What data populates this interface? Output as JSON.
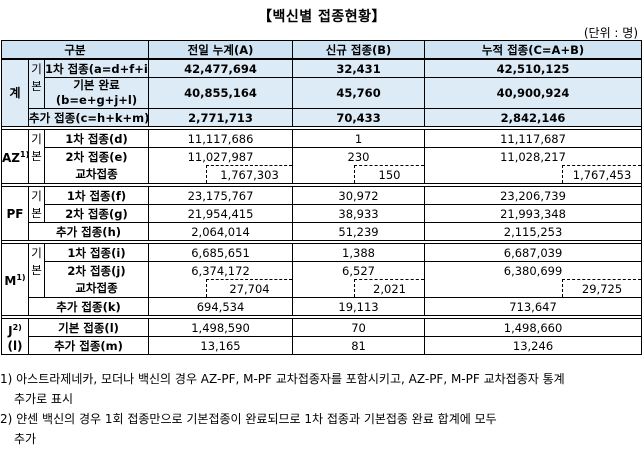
{
  "title": "【백신별 접종현황】",
  "unit": "(단위 : 명)",
  "header": {
    "category": "구분",
    "col1": "전일 누계(A)",
    "col2": "신규 접종(B)",
    "col3": "누적 접종(C=A+B)"
  },
  "labels": {
    "gi": "기",
    "bon": "본"
  },
  "total": {
    "group": "계",
    "first": {
      "label": "1차 접종(a=d+f+i+l)",
      "a": "42,477,694",
      "b": "32,431",
      "c": "42,510,125"
    },
    "complete": {
      "label1": "기본 완료",
      "label2": "(b=e+g+j+l)",
      "a": "40,855,164",
      "b": "45,760",
      "c": "40,900,924"
    },
    "booster": {
      "label": "추가 접종(c=h+k+m)",
      "a": "2,771,713",
      "b": "70,433",
      "c": "2,842,146"
    }
  },
  "az": {
    "group": "AZ",
    "sup": "1)",
    "first": {
      "label": "1차 접종(d)",
      "a": "11,117,686",
      "b": "1",
      "c": "11,117,687"
    },
    "second": {
      "label": "2차 접종(e)",
      "a": "11,027,987",
      "b": "230",
      "c": "11,028,217"
    },
    "cross": {
      "label": "교차접종",
      "a": "1,767,303",
      "b": "150",
      "c": "1,767,453"
    }
  },
  "pf": {
    "group": "PF",
    "first": {
      "label": "1차 접종(f)",
      "a": "23,175,767",
      "b": "30,972",
      "c": "23,206,739"
    },
    "second": {
      "label": "2차 접종(g)",
      "a": "21,954,415",
      "b": "38,933",
      "c": "21,993,348"
    },
    "booster": {
      "label": "추가 접종(h)",
      "a": "2,064,014",
      "b": "51,239",
      "c": "2,115,253"
    }
  },
  "m": {
    "group": "M",
    "sup": "1)",
    "first": {
      "label": "1차 접종(i)",
      "a": "6,685,651",
      "b": "1,388",
      "c": "6,687,039"
    },
    "second": {
      "label": "2차 접종(j)",
      "a": "6,374,172",
      "b": "6,527",
      "c": "6,380,699"
    },
    "cross": {
      "label": "교차접종",
      "a": "27,704",
      "b": "2,021",
      "c": "29,725"
    },
    "booster": {
      "label": "추가 접종(k)",
      "a": "694,534",
      "b": "19,113",
      "c": "713,647"
    }
  },
  "j": {
    "group": "J",
    "sup": "2)",
    "sub": "(l)",
    "basic": {
      "label": "기본 접종(l)",
      "a": "1,498,590",
      "b": "70",
      "c": "1,498,660"
    },
    "booster": {
      "label": "추가 접종(m)",
      "a": "13,165",
      "b": "81",
      "c": "13,246"
    }
  },
  "notes": {
    "n1_line1": "1) 아스트라제네카, 모더나 백신의 경우 AZ-PF, M-PF 교차접종자를 포함시키고, AZ-PF, M-PF 교차접종자 통계",
    "n1_line2": "추가로 표시",
    "n2_line1": "2) 얀센 백신의 경우 1회 접종만으로 기본접종이 완료되므로 1차 접종과 기본접종 완료 합계에 모두",
    "n2_line2": "추가"
  }
}
